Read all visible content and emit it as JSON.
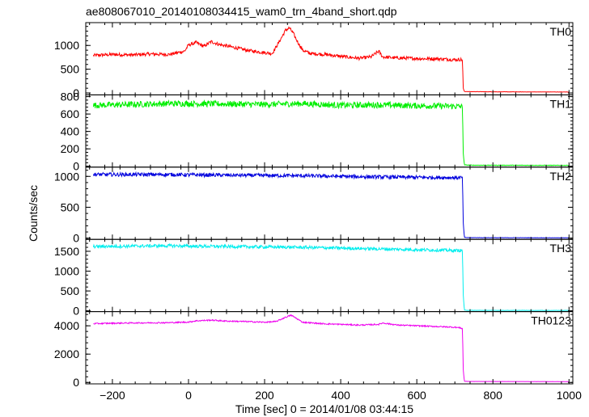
{
  "figure": {
    "title": "ae808067010_20140108034415_wam0_trn_4band_short.qdp",
    "ylabel": "Counts/sec",
    "xlabel": "Time [sec] 0 = 2014/01/08 03:44:15"
  },
  "chart_data": {
    "type": "line",
    "shared_x": {
      "range": [
        -270,
        1010
      ],
      "ticks": [
        -200,
        0,
        200,
        400,
        600,
        800,
        1000
      ],
      "tick_labels": [
        "−200",
        "0",
        "200",
        "400",
        "600",
        "800",
        "1000"
      ]
    },
    "panels": [
      {
        "label": "TH0",
        "color": "#ff0000",
        "ylim": [
          -40,
          1480
        ],
        "ticks": [
          0,
          500,
          1000
        ],
        "tick_labels": [
          "0",
          "500",
          "1000"
        ],
        "series": {
          "x": [
            -250,
            -200,
            -150,
            -100,
            -50,
            -10,
            0,
            20,
            40,
            60,
            80,
            100,
            130,
            160,
            200,
            220,
            240,
            255,
            265,
            275,
            285,
            300,
            320,
            360,
            400,
            450,
            480,
            500,
            510,
            540,
            580,
            620,
            650,
            680,
            700,
            715,
            720,
            722,
            725,
            740,
            800,
            900,
            1000
          ],
          "y": [
            790,
            810,
            800,
            820,
            810,
            880,
            1010,
            1060,
            980,
            1080,
            1020,
            990,
            940,
            890,
            850,
            830,
            1100,
            1320,
            1370,
            1260,
            1100,
            900,
            830,
            810,
            770,
            730,
            760,
            880,
            760,
            740,
            730,
            720,
            720,
            710,
            700,
            705,
            690,
            100,
            30,
            28,
            25,
            22,
            20
          ],
          "noise": 35
        }
      },
      {
        "label": "TH1",
        "color": "#00ee00",
        "ylim": [
          -10,
          820
        ],
        "ticks": [
          0,
          200,
          400,
          600,
          800
        ],
        "tick_labels": [
          "0",
          "200",
          "400",
          "600",
          "800"
        ],
        "series": {
          "x": [
            -250,
            -150,
            -50,
            0,
            100,
            200,
            300,
            400,
            500,
            600,
            700,
            715,
            720,
            722,
            725,
            740,
            1000
          ],
          "y": [
            700,
            710,
            720,
            720,
            715,
            710,
            720,
            700,
            705,
            695,
            690,
            685,
            680,
            150,
            15,
            12,
            10
          ],
          "noise": 35
        }
      },
      {
        "label": "TH2",
        "color": "#0000dd",
        "ylim": [
          -20,
          1150
        ],
        "ticks": [
          0,
          500,
          1000
        ],
        "tick_labels": [
          "0",
          "500",
          "1000"
        ],
        "series": {
          "x": [
            -250,
            -150,
            -50,
            0,
            100,
            200,
            300,
            400,
            500,
            600,
            700,
            715,
            720,
            722,
            725,
            740,
            1000
          ],
          "y": [
            1030,
            1030,
            1030,
            1025,
            1020,
            1015,
            1010,
            1000,
            990,
            985,
            980,
            980,
            975,
            250,
            10,
            8,
            5
          ],
          "noise": 30
        }
      },
      {
        "label": "TH3",
        "color": "#00eeee",
        "ylim": [
          -20,
          1800
        ],
        "ticks": [
          0,
          500,
          1000,
          1500
        ],
        "tick_labels": [
          "0",
          "500",
          "1000",
          "1500"
        ],
        "series": {
          "x": [
            -250,
            -150,
            -50,
            0,
            100,
            200,
            300,
            400,
            500,
            600,
            700,
            715,
            720,
            722,
            725,
            740,
            1000
          ],
          "y": [
            1620,
            1630,
            1640,
            1630,
            1620,
            1610,
            1600,
            1580,
            1560,
            1540,
            1520,
            1520,
            1510,
            400,
            15,
            12,
            10
          ],
          "noise": 40
        }
      },
      {
        "label": "TH0123",
        "color": "#ee00ee",
        "ylim": [
          -100,
          5000
        ],
        "ticks": [
          0,
          2000,
          4000
        ],
        "tick_labels": [
          "0",
          "2000",
          "4000"
        ],
        "series": {
          "x": [
            -250,
            -200,
            -150,
            -100,
            -50,
            0,
            20,
            60,
            100,
            150,
            200,
            230,
            255,
            270,
            285,
            300,
            350,
            400,
            450,
            500,
            510,
            550,
            600,
            650,
            700,
            715,
            720,
            722,
            725,
            740,
            1000
          ],
          "y": [
            4150,
            4180,
            4200,
            4210,
            4220,
            4260,
            4350,
            4400,
            4330,
            4300,
            4250,
            4300,
            4600,
            4750,
            4500,
            4250,
            4150,
            4100,
            4050,
            4100,
            4200,
            4050,
            4000,
            3950,
            3900,
            3850,
            3800,
            900,
            80,
            70,
            60
          ],
          "noise": 45
        }
      }
    ]
  }
}
